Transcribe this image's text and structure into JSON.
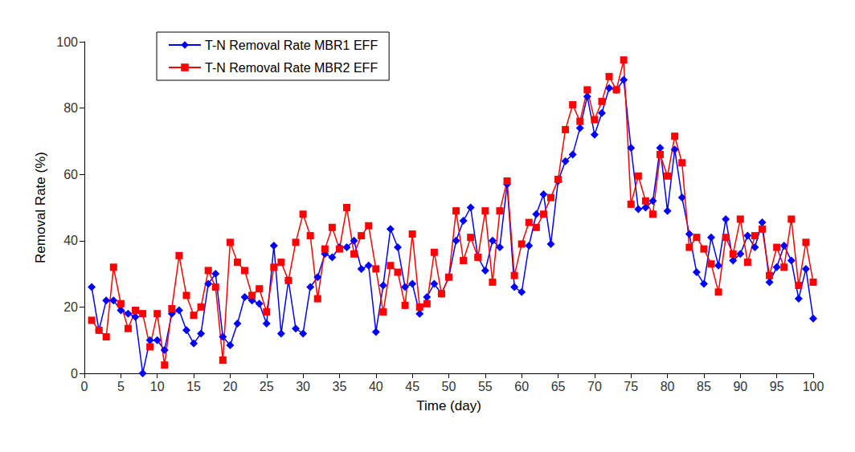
{
  "chart_data": {
    "type": "line",
    "x_label": "Time (day)",
    "y_label": "Removal Rate (%)",
    "x": [
      1,
      2,
      3,
      4,
      5,
      6,
      7,
      8,
      9,
      10,
      11,
      12,
      13,
      14,
      15,
      16,
      17,
      18,
      19,
      20,
      21,
      22,
      23,
      24,
      25,
      26,
      27,
      28,
      29,
      30,
      31,
      32,
      33,
      34,
      35,
      36,
      37,
      38,
      39,
      40,
      41,
      42,
      43,
      44,
      45,
      46,
      47,
      48,
      49,
      50,
      51,
      52,
      53,
      54,
      55,
      56,
      57,
      58,
      59,
      60,
      61,
      62,
      63,
      64,
      65,
      66,
      67,
      68,
      69,
      70,
      71,
      72,
      73,
      74,
      75,
      76,
      77,
      78,
      79,
      80,
      81,
      82,
      83,
      84,
      85,
      86,
      87,
      88,
      89,
      90,
      91,
      92,
      93,
      94,
      95,
      96,
      97,
      98,
      99,
      100
    ],
    "series": [
      {
        "name": "T-N Removal Rate MBR1 EFF",
        "color": "#0000ff",
        "marker": "diamond",
        "line_style": "solid",
        "values": [
          26,
          13,
          22,
          22,
          19,
          18,
          17,
          0,
          10,
          10,
          7,
          18,
          19,
          13,
          9,
          12,
          27,
          30,
          11,
          8.5,
          15,
          23,
          22,
          21,
          15,
          38.5,
          12,
          28,
          13.5,
          12,
          26,
          29,
          36,
          35,
          38,
          38,
          40,
          31.5,
          32.5,
          12.5,
          26.5,
          43.5,
          38,
          26,
          27,
          18,
          23,
          27,
          24,
          29,
          40,
          46,
          50,
          35,
          31,
          40,
          38,
          57,
          26,
          24.5,
          38.5,
          48,
          54,
          39,
          58,
          64,
          66,
          74,
          83.5,
          72,
          78.5,
          86,
          85.5,
          88.5,
          68,
          49.5,
          50,
          52,
          68,
          49,
          67.5,
          53,
          42,
          30.5,
          27,
          41,
          32.5,
          46.5,
          34,
          36,
          41.5,
          38,
          45.5,
          27.5,
          32,
          38.5,
          34,
          22.5,
          31.5,
          16.5
        ]
      },
      {
        "name": "T-N Removal Rate MBR2 EFF",
        "color": "#ff0000",
        "marker": "square",
        "line_style": "solid",
        "values": [
          16,
          13,
          11,
          32,
          21,
          13.5,
          19,
          18,
          8,
          18,
          2.5,
          19.5,
          35.5,
          23.5,
          17.5,
          20,
          31,
          26,
          4,
          39.5,
          33.5,
          31,
          23.5,
          25.5,
          18.5,
          32,
          33.5,
          28,
          39.5,
          48,
          41.5,
          22.5,
          37.5,
          44,
          37.5,
          50,
          36,
          41.5,
          44.5,
          31.5,
          18.5,
          32.5,
          30.5,
          20.5,
          42,
          20,
          21,
          36.5,
          24,
          29,
          49,
          34,
          41,
          35,
          49,
          27.5,
          49,
          58,
          29.5,
          39,
          45.5,
          44,
          48,
          53,
          58.5,
          73.5,
          81,
          76,
          85.5,
          76.5,
          82,
          89.5,
          85.5,
          94.5,
          51,
          59.5,
          52,
          48,
          66,
          59.5,
          71.5,
          63.5,
          38,
          41,
          37.5,
          33,
          24.5,
          41,
          36,
          46.5,
          33.5,
          41.5,
          43.5,
          29.5,
          38,
          32,
          46.5,
          26.5,
          39.5,
          27.5
        ]
      }
    ],
    "xlim": [
      0,
      100
    ],
    "xticks": [
      0,
      5,
      10,
      15,
      20,
      25,
      30,
      35,
      40,
      45,
      50,
      55,
      60,
      65,
      70,
      75,
      80,
      85,
      90,
      95,
      100
    ],
    "ylim": [
      0,
      100
    ],
    "yticks": [
      0,
      20,
      40,
      60,
      80,
      100
    ],
    "grid": false,
    "legend": "upper left"
  }
}
